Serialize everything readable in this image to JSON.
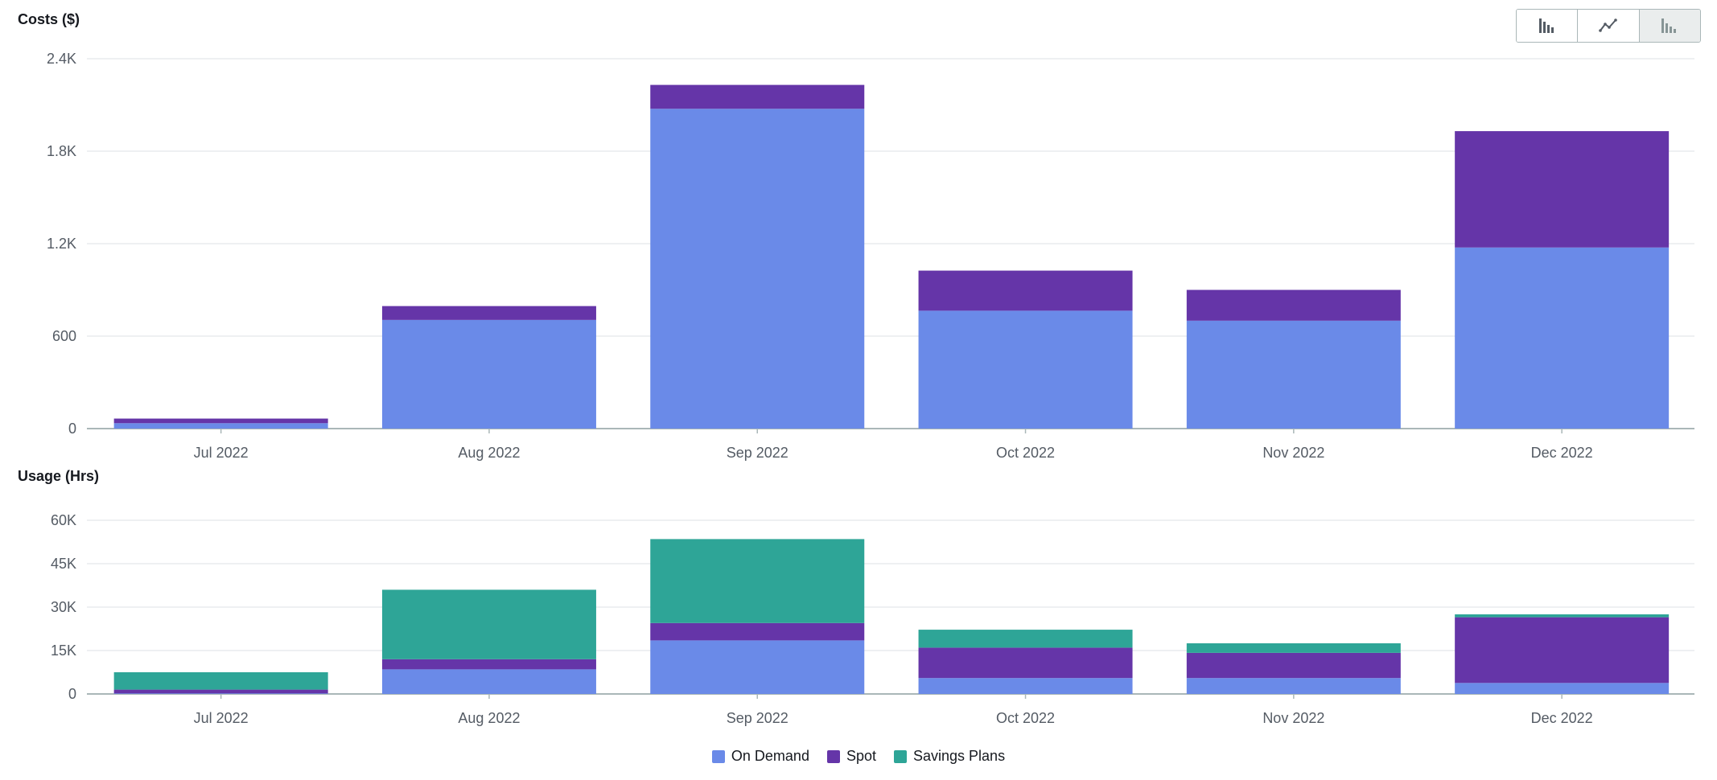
{
  "toolbar": {
    "chart_type_buttons": [
      {
        "icon": "bar-chart-icon",
        "active": false
      },
      {
        "icon": "line-chart-icon",
        "active": false
      },
      {
        "icon": "stacked-bar-chart-icon",
        "active": true
      }
    ]
  },
  "legend": {
    "items": [
      {
        "label": "On Demand",
        "color": "#6a8ae8"
      },
      {
        "label": "Spot",
        "color": "#6535a8"
      },
      {
        "label": "Savings Plans",
        "color": "#2ea597"
      }
    ]
  },
  "chart_data": [
    {
      "type": "bar",
      "stacked": true,
      "title": "Costs ($)",
      "categories": [
        "Jul 2022",
        "Aug 2022",
        "Sep 2022",
        "Oct 2022",
        "Nov 2022",
        "Dec 2022"
      ],
      "yticks": [
        "0",
        "600",
        "1.2K",
        "1.8K",
        "2.4K"
      ],
      "ylim": [
        0,
        2400
      ],
      "grid": true,
      "series": [
        {
          "name": "On Demand",
          "color": "#6a8ae8",
          "values": [
            35,
            705,
            2075,
            765,
            700,
            1175
          ]
        },
        {
          "name": "Spot",
          "color": "#6535a8",
          "values": [
            30,
            90,
            155,
            260,
            200,
            755
          ]
        }
      ]
    },
    {
      "type": "bar",
      "stacked": true,
      "title": "Usage (Hrs)",
      "categories": [
        "Jul 2022",
        "Aug 2022",
        "Sep 2022",
        "Oct 2022",
        "Nov 2022",
        "Dec 2022"
      ],
      "yticks": [
        "0",
        "15K",
        "30K",
        "45K",
        "60K"
      ],
      "ylim": [
        0,
        60000
      ],
      "grid": true,
      "series": [
        {
          "name": "On Demand",
          "color": "#6a8ae8",
          "values": [
            200,
            8500,
            18500,
            5500,
            5500,
            3800
          ]
        },
        {
          "name": "Spot",
          "color": "#6535a8",
          "values": [
            1300,
            3500,
            6000,
            10500,
            8700,
            22700
          ]
        },
        {
          "name": "Savings Plans",
          "color": "#2ea597",
          "values": [
            6000,
            24000,
            29000,
            6200,
            3300,
            1000
          ]
        }
      ]
    }
  ]
}
